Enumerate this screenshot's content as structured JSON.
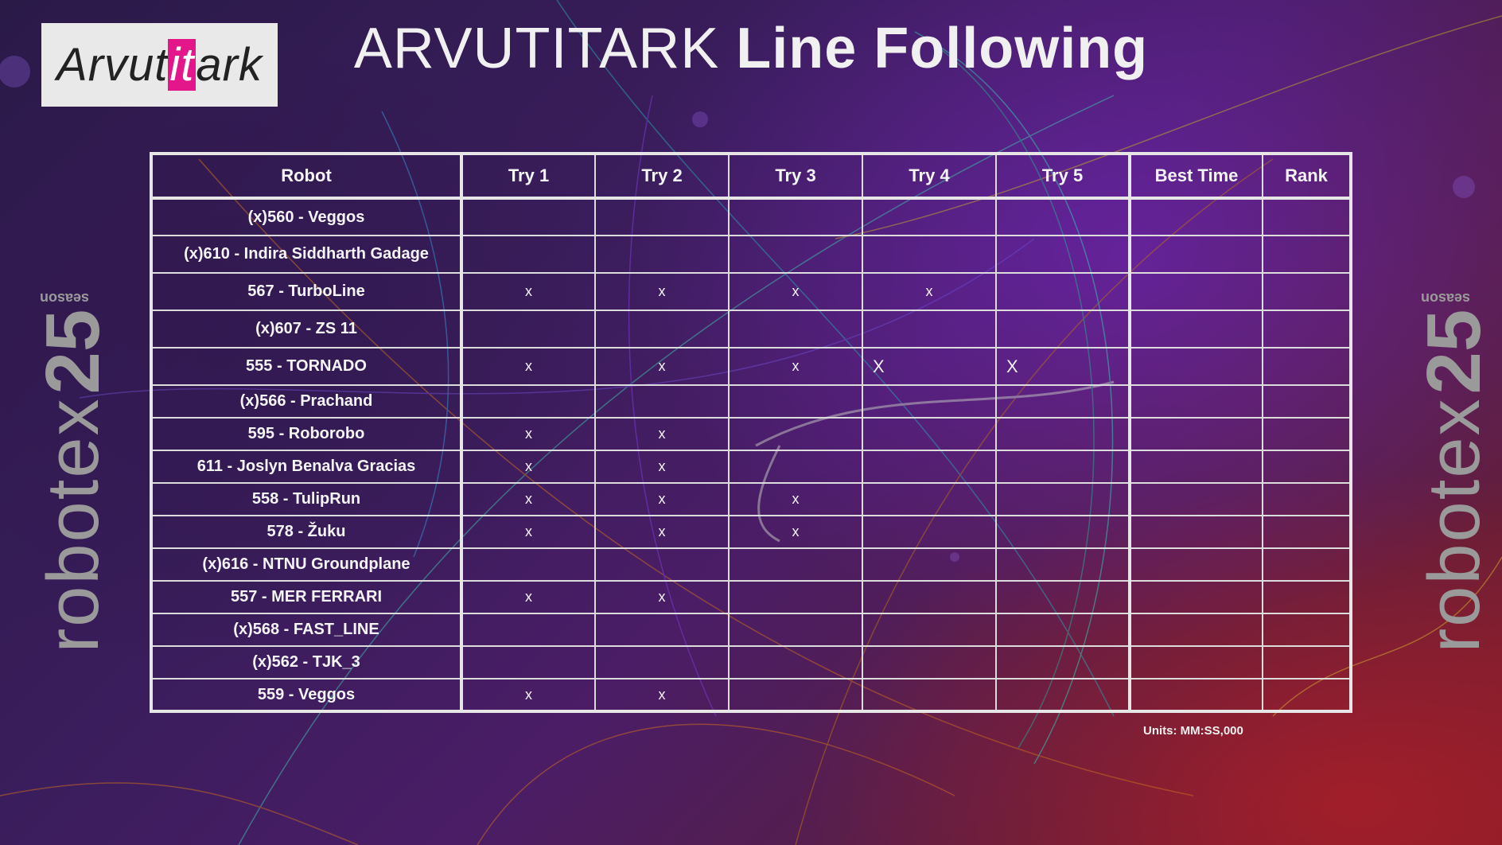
{
  "logo": {
    "prefix": "Arvut",
    "highlight": "it",
    "suffix": "ark"
  },
  "title": {
    "part1": "ARVUTITARK",
    "part2": "Line Following"
  },
  "brand": {
    "word": "robotex",
    "number": "25",
    "season": "season"
  },
  "table": {
    "headers": [
      "Robot",
      "Try 1",
      "Try 2",
      "Try 3",
      "Try 4",
      "Try 5",
      "Best Time",
      "Rank"
    ],
    "rows": [
      {
        "robot": "(x)560 - Veggos",
        "t1": "",
        "t2": "",
        "t3": "",
        "t4": "",
        "t5": "",
        "best": "",
        "rank": ""
      },
      {
        "robot": "(x)610 - Indira Siddharth Gadage",
        "t1": "",
        "t2": "",
        "t3": "",
        "t4": "",
        "t5": "",
        "best": "",
        "rank": ""
      },
      {
        "robot": "567 - TurboLine",
        "t1": "x",
        "t2": "x",
        "t3": "x",
        "t4": "x",
        "t5": "",
        "best": "",
        "rank": ""
      },
      {
        "robot": "(x)607 - ZS 11",
        "t1": "",
        "t2": "",
        "t3": "",
        "t4": "",
        "t5": "",
        "best": "",
        "rank": ""
      },
      {
        "robot": "555 - TORNADO",
        "t1": "x",
        "t2": "x",
        "t3": "x",
        "t4": "X",
        "t5": "X",
        "best": "",
        "rank": ""
      },
      {
        "robot": "(x)566 - Prachand",
        "t1": "",
        "t2": "",
        "t3": "",
        "t4": "",
        "t5": "",
        "best": "",
        "rank": ""
      },
      {
        "robot": "595 - Roborobo",
        "t1": "x",
        "t2": "x",
        "t3": "",
        "t4": "",
        "t5": "",
        "best": "",
        "rank": ""
      },
      {
        "robot": "611 - Joslyn Benalva Gracias",
        "t1": "x",
        "t2": "x",
        "t3": "",
        "t4": "",
        "t5": "",
        "best": "",
        "rank": ""
      },
      {
        "robot": "558 - TulipRun",
        "t1": "x",
        "t2": "x",
        "t3": "x",
        "t4": "",
        "t5": "",
        "best": "",
        "rank": ""
      },
      {
        "robot": "578 - Žuku",
        "t1": "x",
        "t2": "x",
        "t3": "x",
        "t4": "",
        "t5": "",
        "best": "",
        "rank": ""
      },
      {
        "robot": "(x)616 - NTNU Groundplane",
        "t1": "",
        "t2": "",
        "t3": "",
        "t4": "",
        "t5": "",
        "best": "",
        "rank": ""
      },
      {
        "robot": "557 - MER FERRARI",
        "t1": "x",
        "t2": "x",
        "t3": "",
        "t4": "",
        "t5": "",
        "best": "",
        "rank": ""
      },
      {
        "robot": "(x)568 - FAST_LINE",
        "t1": "",
        "t2": "",
        "t3": "",
        "t4": "",
        "t5": "",
        "best": "",
        "rank": ""
      },
      {
        "robot": "(x)562 - TJK_3",
        "t1": "",
        "t2": "",
        "t3": "",
        "t4": "",
        "t5": "",
        "best": "",
        "rank": ""
      },
      {
        "robot": "559 - Veggos",
        "t1": "x",
        "t2": "x",
        "t3": "",
        "t4": "",
        "t5": "",
        "best": "",
        "rank": ""
      }
    ]
  },
  "units": "Units: MM:SS,000",
  "colors": {
    "logo_highlight": "#e3178a",
    "brand_gray": "#9a9a9a",
    "table_border": "#e6e6e6"
  }
}
